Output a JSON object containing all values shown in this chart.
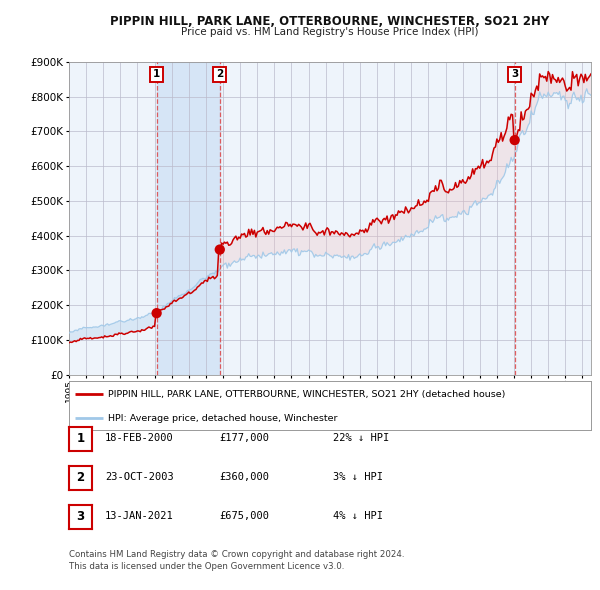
{
  "title": "PIPPIN HILL, PARK LANE, OTTERBOURNE, WINCHESTER, SO21 2HY",
  "subtitle": "Price paid vs. HM Land Registry's House Price Index (HPI)",
  "ylim": [
    0,
    900000
  ],
  "yticks": [
    0,
    100000,
    200000,
    300000,
    400000,
    500000,
    600000,
    700000,
    800000,
    900000
  ],
  "ytick_labels": [
    "£0",
    "£100K",
    "£200K",
    "£300K",
    "£400K",
    "£500K",
    "£600K",
    "£700K",
    "£800K",
    "£900K"
  ],
  "xlim_start": 1995.0,
  "xlim_end": 2025.5,
  "sale_dates": [
    2000.12,
    2003.81,
    2021.04
  ],
  "sale_prices": [
    177000,
    360000,
    675000
  ],
  "property_color": "#cc0000",
  "hpi_color": "#a0c8e8",
  "vline_color": "#dd4444",
  "background_color": "#ffffff",
  "chart_bg_color": "#eef4fb",
  "grid_color": "#bbbbcc",
  "legend_label_property": "PIPPIN HILL, PARK LANE, OTTERBOURNE, WINCHESTER, SO21 2HY (detached house)",
  "legend_label_hpi": "HPI: Average price, detached house, Winchester",
  "table_data": [
    [
      "1",
      "18-FEB-2000",
      "£177,000",
      "22% ↓ HPI"
    ],
    [
      "2",
      "23-OCT-2003",
      "£360,000",
      "3% ↓ HPI"
    ],
    [
      "3",
      "13-JAN-2021",
      "£675,000",
      "4% ↓ HPI"
    ]
  ],
  "footer_line1": "Contains HM Land Registry data © Crown copyright and database right 2024.",
  "footer_line2": "This data is licensed under the Open Government Licence v3.0."
}
